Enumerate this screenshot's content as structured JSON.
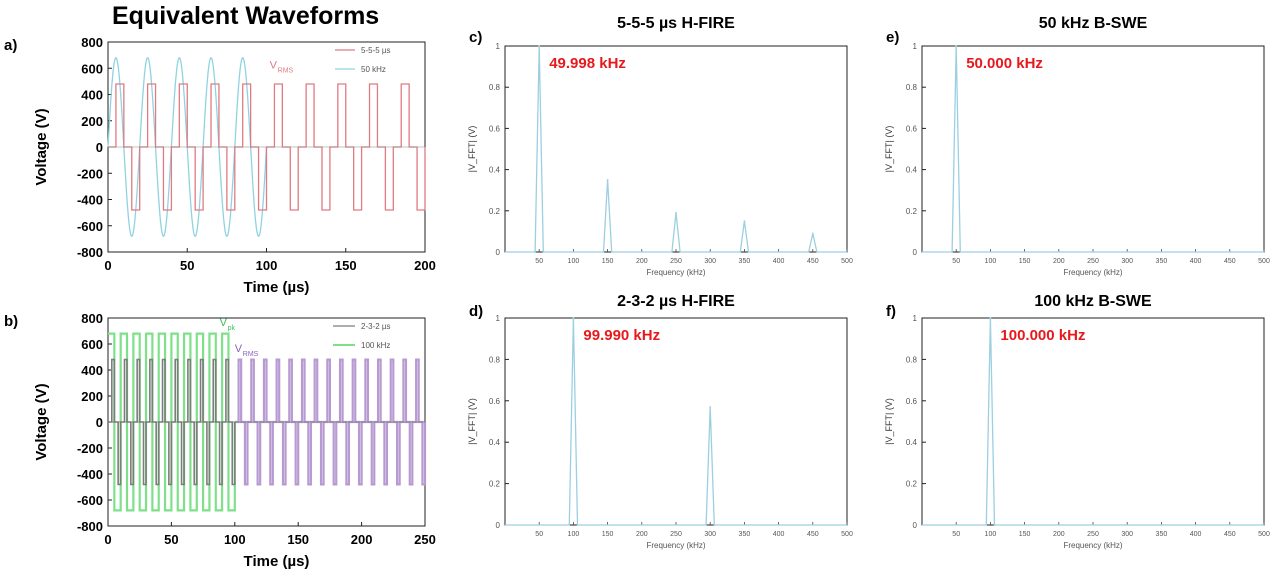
{
  "page_title": "Equivalent Waveforms",
  "colors": {
    "red_wave": "#e07a83",
    "cyan_wave": "#8fd3e0",
    "gray_wave": "#7d7d7d",
    "green_wave": "#7fe08a",
    "purple_wave": "#b79ad1",
    "spectrum": "#9ccfe0",
    "peak_label": "#e8191c"
  },
  "chart_data": [
    {
      "id": "a",
      "panel_label": "a)",
      "type": "line",
      "title": "",
      "xlabel": "Time (µs)",
      "ylabel": "Voltage (V)",
      "xlim": [
        0,
        200
      ],
      "ylim": [
        -800,
        800
      ],
      "xticks": [
        "0",
        "50",
        "100",
        "150",
        "200"
      ],
      "yticks": [
        "800",
        "600",
        "400",
        "200",
        "0",
        "-200",
        "-400",
        "-600",
        "-800"
      ],
      "legend_position": "top-right",
      "legend": [
        "5-5-5 µs",
        "50 kHz"
      ],
      "annotations": [
        "V",
        "RMS"
      ],
      "series": [
        {
          "name": "5-5-5 µs",
          "kind": "bipolar_burst",
          "amplitude": 480,
          "pulse_width_us": 5,
          "interphase_us": 5,
          "interpulse_us": 5,
          "period_us": 20,
          "x_start": 0,
          "x_end": 200
        },
        {
          "name": "50 kHz",
          "kind": "sine",
          "amplitude": 680,
          "frequency_khz": 50,
          "x_start": 0,
          "x_end": 100
        }
      ]
    },
    {
      "id": "b",
      "panel_label": "b)",
      "type": "line",
      "title": "",
      "xlabel": "Time (µs)",
      "ylabel": "Voltage (V)",
      "xlim": [
        0,
        250
      ],
      "ylim": [
        -800,
        800
      ],
      "xticks": [
        "0",
        "50",
        "100",
        "150",
        "200",
        "250"
      ],
      "yticks": [
        "800",
        "600",
        "400",
        "200",
        "0",
        "-200",
        "-400",
        "-600",
        "-800"
      ],
      "legend_position": "top-right",
      "legend": [
        "2-3-2 µs",
        "100 kHz"
      ],
      "annotations": [
        "V",
        "pk",
        "V",
        "RMS"
      ],
      "series": [
        {
          "name": "2-3-2 µs",
          "kind": "bipolar_burst",
          "amplitude": 480,
          "pulse_width_us": 2,
          "interphase_us": 3,
          "interpulse_us": 3,
          "period_us": 10,
          "x_start": 0,
          "x_end": 250
        },
        {
          "name": "100 kHz",
          "kind": "square",
          "amplitude": 680,
          "frequency_khz": 100,
          "x_start": 0,
          "x_end": 100
        }
      ]
    },
    {
      "id": "c",
      "panel_label": "c)",
      "type": "line",
      "title": "5-5-5 µs H-FIRE",
      "xlabel": "Frequency (kHz)",
      "ylabel": "|V_FFT| (V)",
      "xlim": [
        0,
        500
      ],
      "ylim": [
        0,
        1
      ],
      "xticks": [
        "50",
        "100",
        "150",
        "200",
        "250",
        "300",
        "350",
        "400",
        "450",
        "500"
      ],
      "yticks": [
        "1",
        "0.8",
        "0.6",
        "0.4",
        "0.2",
        "0"
      ],
      "peak_label": "49.998 kHz",
      "peaks": [
        {
          "x": 50,
          "y": 1.0
        },
        {
          "x": 150,
          "y": 0.35
        },
        {
          "x": 250,
          "y": 0.19
        },
        {
          "x": 350,
          "y": 0.15
        },
        {
          "x": 450,
          "y": 0.09
        }
      ]
    },
    {
      "id": "d",
      "panel_label": "d)",
      "type": "line",
      "title": "2-3-2 µs H-FIRE",
      "xlabel": "Frequency (kHz)",
      "ylabel": "|V_FFT| (V)",
      "xlim": [
        0,
        500
      ],
      "ylim": [
        0,
        1
      ],
      "xticks": [
        "50",
        "100",
        "150",
        "200",
        "250",
        "300",
        "350",
        "400",
        "450",
        "500"
      ],
      "yticks": [
        "1",
        "0.8",
        "0.6",
        "0.4",
        "0.2",
        "0"
      ],
      "peak_label": "99.990 kHz",
      "peaks": [
        {
          "x": 100,
          "y": 1.0
        },
        {
          "x": 300,
          "y": 0.57
        }
      ]
    },
    {
      "id": "e",
      "panel_label": "e)",
      "type": "line",
      "title": "50 kHz B-SWE",
      "xlabel": "Frequency (kHz)",
      "ylabel": "|V_FFT| (V)",
      "xlim": [
        0,
        500
      ],
      "ylim": [
        0,
        1
      ],
      "xticks": [
        "50",
        "100",
        "150",
        "200",
        "250",
        "300",
        "350",
        "400",
        "450",
        "500"
      ],
      "yticks": [
        "1",
        "0.8",
        "0.6",
        "0.4",
        "0.2",
        "0"
      ],
      "peak_label": "50.000 kHz",
      "peaks": [
        {
          "x": 50,
          "y": 1.0
        }
      ]
    },
    {
      "id": "f",
      "panel_label": "f)",
      "type": "line",
      "title": "100 kHz B-SWE",
      "xlabel": "Frequency (kHz)",
      "ylabel": "|V_FFT| (V)",
      "xlim": [
        0,
        500
      ],
      "ylim": [
        0,
        1
      ],
      "xticks": [
        "50",
        "100",
        "150",
        "200",
        "250",
        "300",
        "350",
        "400",
        "450",
        "500"
      ],
      "yticks": [
        "1",
        "0.8",
        "0.6",
        "0.4",
        "0.2",
        "0"
      ],
      "peak_label": "100.000 kHz",
      "peaks": [
        {
          "x": 100,
          "y": 1.0
        }
      ]
    }
  ]
}
